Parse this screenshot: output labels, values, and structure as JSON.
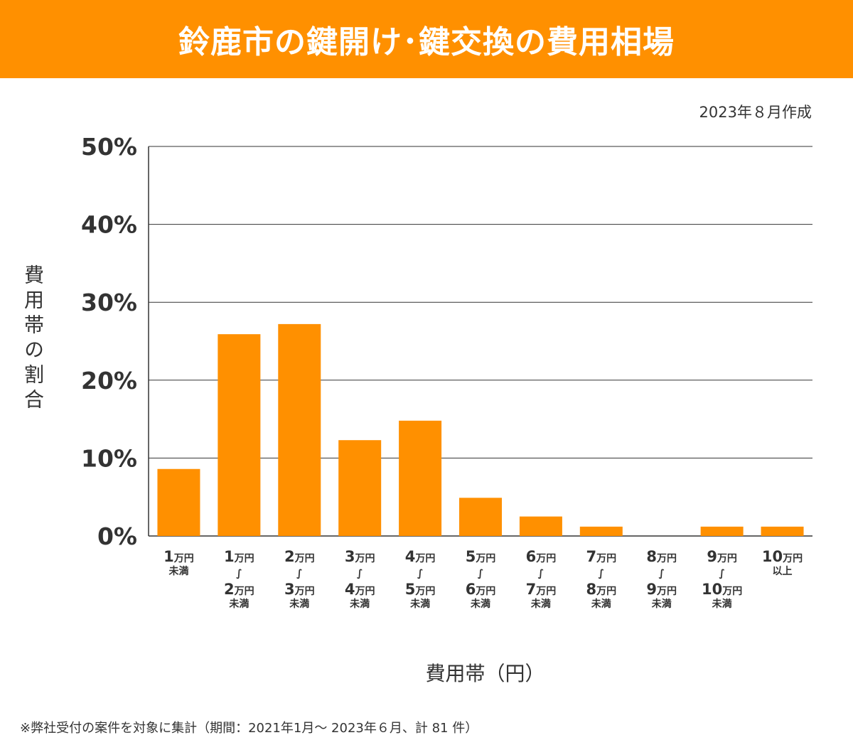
{
  "header": {
    "title": "鈴鹿市の鍵開け･鍵交換の費用相場"
  },
  "created_date": "2023年８月作成",
  "colors": {
    "accent": "#FF9000",
    "grid": "#333333",
    "text": "#333333"
  },
  "footnote": "※弊社受付の案件を対象に集計（期間：2021年1月～ 2023年６月、計 81 件）",
  "chart_data": {
    "type": "bar",
    "title": "鈴鹿市の鍵開け･鍵交換の費用相場",
    "xlabel": "費用帯（円）",
    "ylabel": "費用帯の割合",
    "ylim": [
      0,
      50
    ],
    "yticks": [
      "0%",
      "10%",
      "20%",
      "30%",
      "40%",
      "50%"
    ],
    "grid": true,
    "categories": [
      [
        {
          "n": "1",
          "u": "万円"
        },
        {
          "s": "未満"
        }
      ],
      [
        {
          "n": "1",
          "u": "万円"
        },
        {
          "t": "∫"
        },
        {
          "n": "2",
          "u": "万円"
        },
        {
          "s": "未満"
        }
      ],
      [
        {
          "n": "2",
          "u": "万円"
        },
        {
          "t": "∫"
        },
        {
          "n": "3",
          "u": "万円"
        },
        {
          "s": "未満"
        }
      ],
      [
        {
          "n": "3",
          "u": "万円"
        },
        {
          "t": "∫"
        },
        {
          "n": "4",
          "u": "万円"
        },
        {
          "s": "未満"
        }
      ],
      [
        {
          "n": "4",
          "u": "万円"
        },
        {
          "t": "∫"
        },
        {
          "n": "5",
          "u": "万円"
        },
        {
          "s": "未満"
        }
      ],
      [
        {
          "n": "5",
          "u": "万円"
        },
        {
          "t": "∫"
        },
        {
          "n": "6",
          "u": "万円"
        },
        {
          "s": "未満"
        }
      ],
      [
        {
          "n": "6",
          "u": "万円"
        },
        {
          "t": "∫"
        },
        {
          "n": "7",
          "u": "万円"
        },
        {
          "s": "未満"
        }
      ],
      [
        {
          "n": "7",
          "u": "万円"
        },
        {
          "t": "∫"
        },
        {
          "n": "8",
          "u": "万円"
        },
        {
          "s": "未満"
        }
      ],
      [
        {
          "n": "8",
          "u": "万円"
        },
        {
          "t": "∫"
        },
        {
          "n": "9",
          "u": "万円"
        },
        {
          "s": "未満"
        }
      ],
      [
        {
          "n": "9",
          "u": "万円"
        },
        {
          "t": "∫"
        },
        {
          "n": "10",
          "u": "万円"
        },
        {
          "s": "未満"
        }
      ],
      [
        {
          "n": "10",
          "u": "万円"
        },
        {
          "s": "以上"
        }
      ]
    ],
    "values": [
      8.6,
      25.9,
      27.2,
      12.3,
      14.8,
      4.9,
      2.5,
      1.2,
      0,
      1.2,
      1.2
    ]
  }
}
